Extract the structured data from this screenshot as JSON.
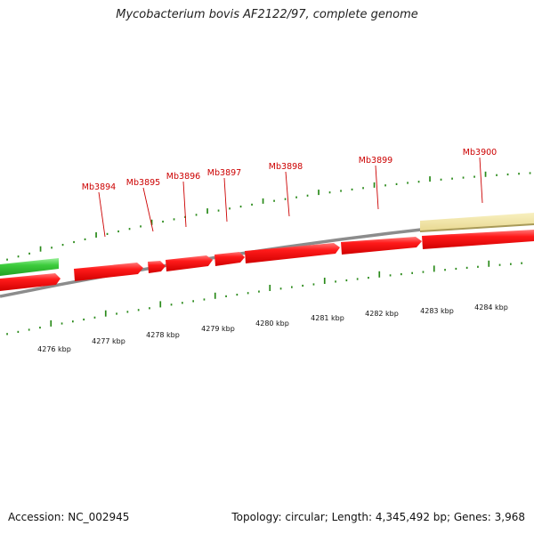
{
  "title": "Mycobacterium bovis AF2122/97, complete genome",
  "footer": {
    "accession": "Accession: NC_002945",
    "summary": "Topology: circular; Length: 4,345,492 bp; Genes: 3,968"
  },
  "colors": {
    "cds": "#e01010",
    "cds_light": "#ff6a6a",
    "green_feature": "#3cc83c",
    "yellow_feature": "#efe3a0",
    "backbone": "#8a8a8a",
    "tick": "#2a8a1a",
    "label": "#cc0000"
  },
  "genes": [
    {
      "label": "Mb3894"
    },
    {
      "label": "Mb3895"
    },
    {
      "label": "Mb3896"
    },
    {
      "label": "Mb3897"
    },
    {
      "label": "Mb3898"
    },
    {
      "label": "Mb3899"
    },
    {
      "label": "Mb3900"
    }
  ],
  "kbp_ticks": [
    {
      "label": "4276 kbp"
    },
    {
      "label": "4277 kbp"
    },
    {
      "label": "4278 kbp"
    },
    {
      "label": "4279 kbp"
    },
    {
      "label": "4280 kbp"
    },
    {
      "label": "4281 kbp"
    },
    {
      "label": "4282 kbp"
    },
    {
      "label": "4283 kbp"
    },
    {
      "label": "4284 kbp"
    }
  ]
}
